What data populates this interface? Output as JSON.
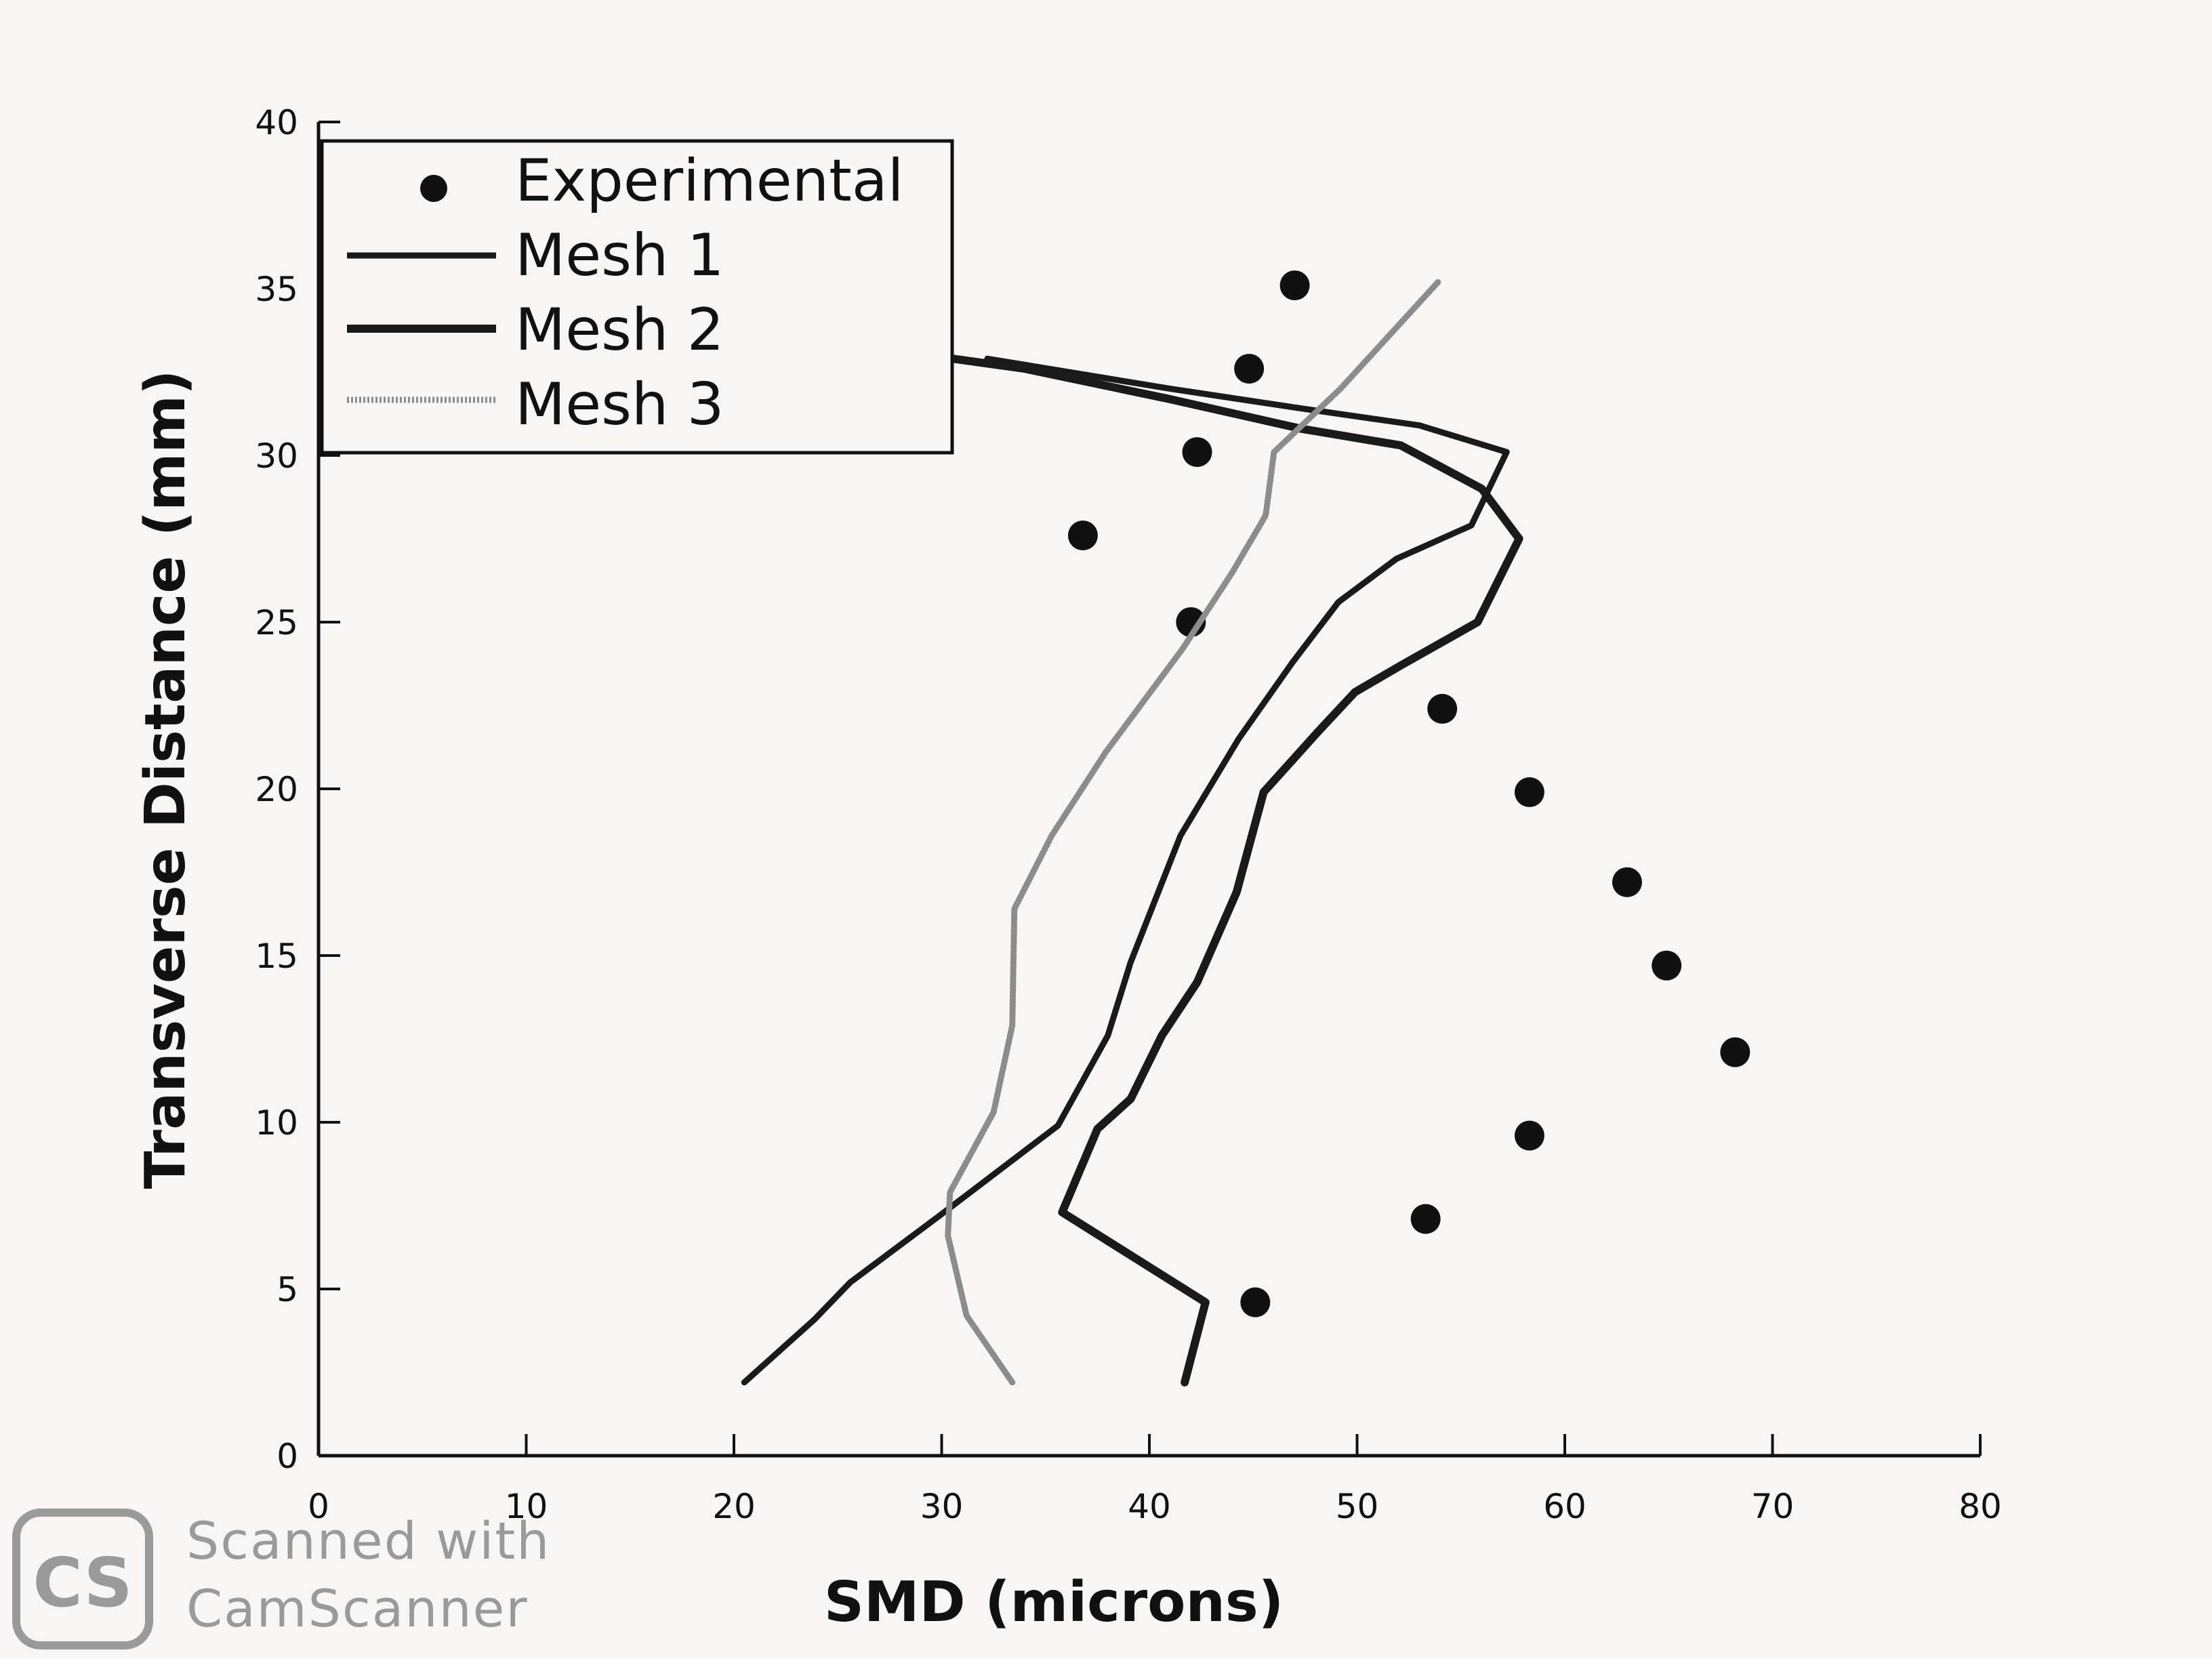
{
  "chart_data": {
    "type": "line",
    "title": "",
    "xlabel": "SMD (microns)",
    "ylabel": "Transverse Distance (mm)",
    "xlim": [
      0,
      80
    ],
    "ylim": [
      0,
      40
    ],
    "xticks": [
      0,
      10,
      20,
      30,
      40,
      50,
      60,
      70,
      80
    ],
    "yticks": [
      0,
      5,
      10,
      15,
      20,
      25,
      30,
      35,
      40
    ],
    "xtick_labels": [
      "0",
      "10",
      "20",
      "30",
      "40",
      "50",
      "60",
      "70",
      "80"
    ],
    "ytick_labels": [
      "0",
      "5",
      "10",
      "15",
      "20",
      "25",
      "30",
      "35",
      "40"
    ],
    "grid": false,
    "legend_position": "top-left",
    "series": [
      {
        "name": "Experimental",
        "kind": "scatter",
        "color": "#111111",
        "points": [
          [
            45.1,
            4.6
          ],
          [
            53.3,
            7.1
          ],
          [
            58.3,
            9.6
          ],
          [
            68.2,
            12.1
          ],
          [
            64.9,
            14.7
          ],
          [
            63.0,
            17.2
          ],
          [
            58.3,
            19.9
          ],
          [
            54.1,
            22.4
          ],
          [
            42.0,
            25.0
          ],
          [
            36.8,
            27.6
          ],
          [
            42.3,
            30.1
          ],
          [
            44.8,
            32.6
          ],
          [
            47.0,
            35.1
          ]
        ]
      },
      {
        "name": "Mesh 1",
        "kind": "line",
        "color": "#1a1a1a",
        "points": [
          [
            20.5,
            2.2
          ],
          [
            23.9,
            4.1
          ],
          [
            25.6,
            5.2
          ],
          [
            29.9,
            7.2
          ],
          [
            35.6,
            9.9
          ],
          [
            38.0,
            12.6
          ],
          [
            39.1,
            14.8
          ],
          [
            41.5,
            18.6
          ],
          [
            44.3,
            21.5
          ],
          [
            46.9,
            23.8
          ],
          [
            49.1,
            25.6
          ],
          [
            51.9,
            26.9
          ],
          [
            55.5,
            27.9
          ],
          [
            57.2,
            30.1
          ],
          [
            53.0,
            30.9
          ],
          [
            47.4,
            31.4
          ],
          [
            41.0,
            32.0
          ],
          [
            32.2,
            32.9
          ]
        ]
      },
      {
        "name": "Mesh 2",
        "kind": "line",
        "color": "#1a1a1a",
        "points": [
          [
            41.7,
            2.2
          ],
          [
            42.7,
            4.6
          ],
          [
            35.8,
            7.3
          ],
          [
            37.5,
            9.8
          ],
          [
            39.1,
            10.7
          ],
          [
            40.6,
            12.6
          ],
          [
            42.3,
            14.2
          ],
          [
            44.2,
            16.9
          ],
          [
            45.5,
            19.9
          ],
          [
            48.1,
            21.7
          ],
          [
            49.9,
            22.9
          ],
          [
            52.1,
            23.7
          ],
          [
            55.8,
            25.0
          ],
          [
            57.8,
            27.5
          ],
          [
            56.0,
            29.0
          ],
          [
            52.1,
            30.3
          ],
          [
            47.3,
            30.8
          ],
          [
            40.9,
            31.7
          ],
          [
            34.0,
            32.6
          ],
          [
            29.4,
            33.0
          ]
        ]
      },
      {
        "name": "Mesh 3",
        "kind": "line",
        "color": "#8c8c8c",
        "points": [
          [
            33.4,
            2.2
          ],
          [
            31.2,
            4.2
          ],
          [
            30.3,
            6.6
          ],
          [
            30.4,
            7.9
          ],
          [
            32.5,
            10.3
          ],
          [
            33.4,
            12.9
          ],
          [
            33.5,
            16.4
          ],
          [
            35.3,
            18.6
          ],
          [
            37.9,
            21.1
          ],
          [
            41.6,
            24.2
          ],
          [
            44.0,
            26.5
          ],
          [
            45.6,
            28.2
          ],
          [
            46.0,
            30.1
          ],
          [
            49.2,
            32.0
          ],
          [
            53.9,
            35.2
          ]
        ]
      }
    ]
  },
  "watermark": {
    "logo": "CS",
    "line1": "Scanned with",
    "line2": "CamScanner"
  }
}
